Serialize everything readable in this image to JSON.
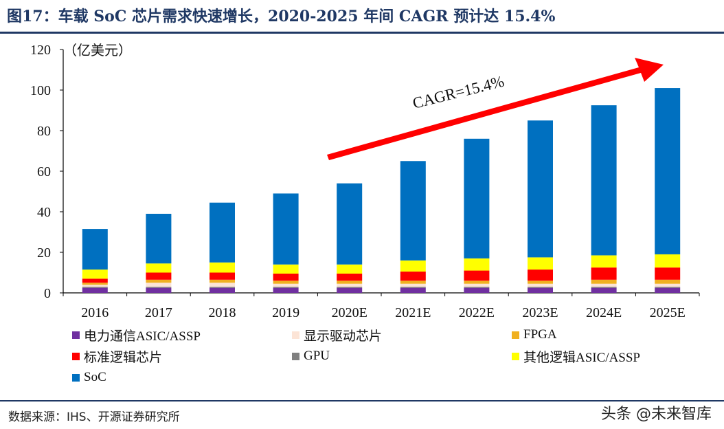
{
  "title": "图17：车载 SoC 芯片需求快速增长，2020-2025 年间 CAGR 预计达 15.4%",
  "source": "数据来源：IHS、开源证券研究所",
  "watermark": "头条 @未来智库",
  "colors": {
    "title": "#1F3864",
    "arrow": "#FF0000"
  },
  "chart_data": {
    "type": "bar",
    "stacked": true,
    "unit_label": "（亿美元）",
    "categories": [
      "2016",
      "2017",
      "2018",
      "2019",
      "2020E",
      "2021E",
      "2022E",
      "2023E",
      "2024E",
      "2025E"
    ],
    "ylim": [
      0,
      120
    ],
    "yticks": [
      0,
      20,
      40,
      60,
      80,
      100,
      120
    ],
    "annotation": "CAGR=15.4%",
    "series": [
      {
        "name": "电力通信ASIC/ASSP",
        "color": "#7030A0",
        "values": [
          2.5,
          2.5,
          2.5,
          2.5,
          2.5,
          2.5,
          2.5,
          2.5,
          2.5,
          2.5
        ]
      },
      {
        "name": "GPU",
        "color": "#808080",
        "values": [
          0.5,
          0.5,
          0.5,
          0.5,
          0.5,
          0.5,
          0.5,
          0.5,
          0.5,
          0.5
        ]
      },
      {
        "name": "显示驱动芯片",
        "color": "#FCE4D6",
        "values": [
          1.0,
          2.0,
          2.0,
          1.5,
          1.5,
          1.5,
          1.5,
          1.5,
          1.5,
          1.5
        ]
      },
      {
        "name": "FPGA",
        "color": "#F0B020",
        "values": [
          1.0,
          1.5,
          1.5,
          1.5,
          1.5,
          1.5,
          1.5,
          1.5,
          2.0,
          2.0
        ]
      },
      {
        "name": "标准逻辑芯片",
        "color": "#FF0000",
        "values": [
          2.0,
          3.5,
          3.5,
          3.5,
          3.5,
          4.5,
          5.0,
          5.5,
          6.0,
          6.0
        ]
      },
      {
        "name": "其他逻辑ASIC/ASSP",
        "color": "#FFFF00",
        "values": [
          4.5,
          4.5,
          5.0,
          4.5,
          4.5,
          5.5,
          6.0,
          6.0,
          6.0,
          6.5
        ]
      },
      {
        "name": "SoC",
        "color": "#0070C0",
        "values": [
          20,
          24.5,
          29.5,
          35,
          40,
          49,
          59,
          67.5,
          74,
          82
        ]
      }
    ],
    "legend_order": [
      "电力通信ASIC/ASSP",
      "显示驱动芯片",
      "FPGA",
      "标准逻辑芯片",
      "GPU",
      "其他逻辑ASIC/ASSP",
      "SoC"
    ]
  }
}
